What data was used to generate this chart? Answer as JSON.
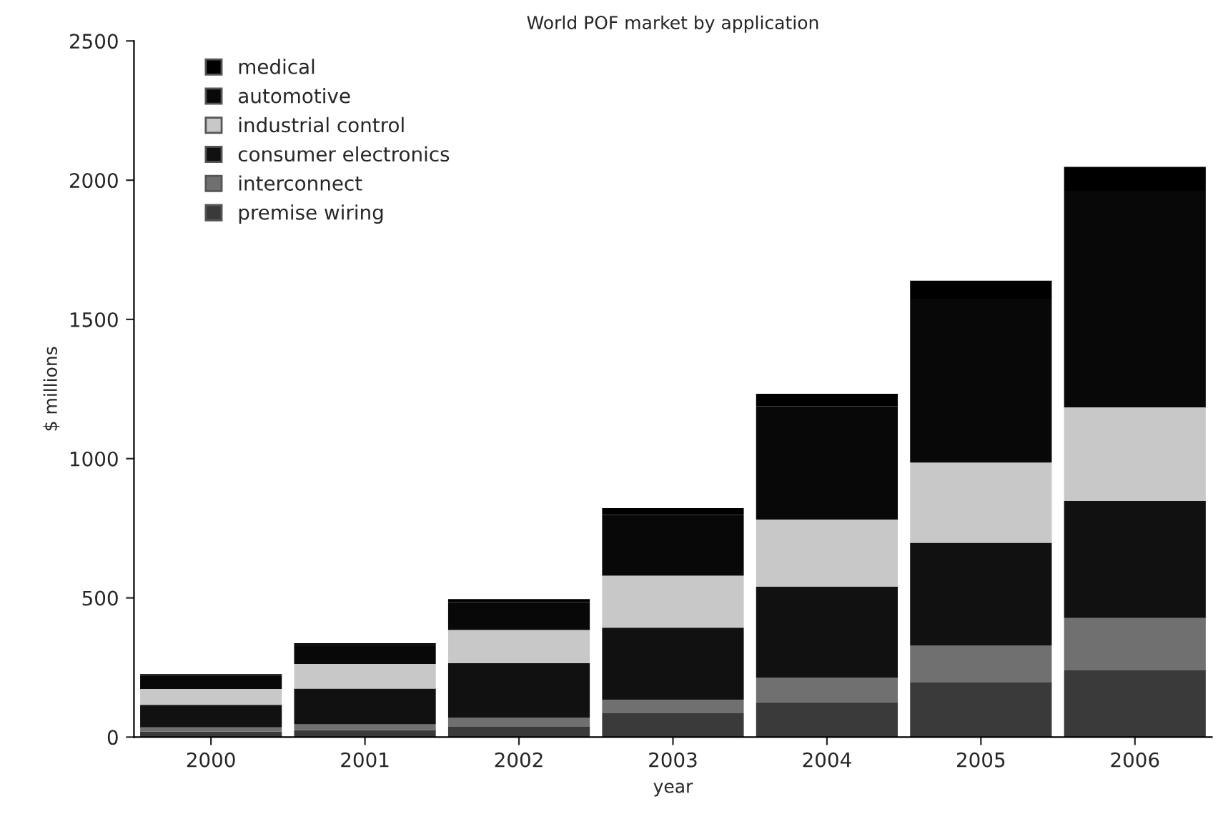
{
  "chart_data": {
    "type": "bar",
    "title": "World POF market by application",
    "xlabel": "year",
    "ylabel": "$ millions",
    "categories": [
      "2000",
      "2001",
      "2002",
      "2003",
      "2004",
      "2005",
      "2006"
    ],
    "stacked": true,
    "series": [
      {
        "name": "premise wiring",
        "color": "#3a3a3a",
        "values": [
          20,
          25,
          37,
          86,
          125,
          196,
          240
        ]
      },
      {
        "name": "interconnect",
        "color": "#707070",
        "values": [
          15,
          21,
          32,
          48,
          88,
          132,
          188
        ]
      },
      {
        "name": "consumer electronics",
        "color": "#111111",
        "values": [
          81,
          128,
          197,
          259,
          327,
          370,
          420
        ]
      },
      {
        "name": "industrial control",
        "color": "#c8c8c8",
        "values": [
          57,
          89,
          119,
          187,
          241,
          288,
          336
        ]
      },
      {
        "name": "automotive",
        "color": "#080808",
        "values": [
          48,
          67,
          100,
          218,
          407,
          588,
          778
        ]
      },
      {
        "name": "medical",
        "color": "#000000",
        "values": [
          5,
          7,
          11,
          24,
          45,
          65,
          86
        ]
      }
    ],
    "ylim": [
      0,
      2500
    ],
    "yticks": [
      0,
      500,
      1000,
      1500,
      2000,
      2500
    ],
    "legend": "top left",
    "grid": false
  }
}
